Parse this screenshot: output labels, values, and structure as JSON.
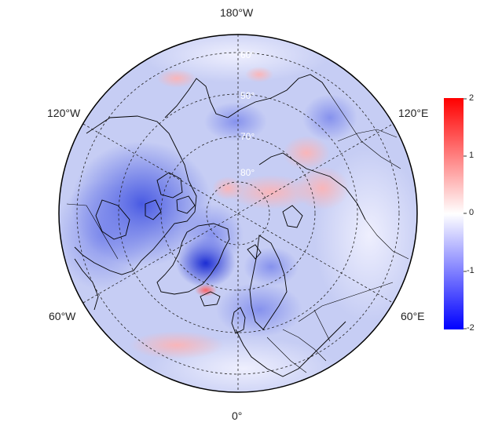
{
  "map": {
    "projection": "north-polar-stereographic",
    "lon_labels": [
      {
        "id": "top",
        "text": "180°W"
      },
      {
        "id": "upper-left",
        "text": "120°W"
      },
      {
        "id": "upper-right",
        "text": "120°E"
      },
      {
        "id": "lower-left",
        "text": "60°W"
      },
      {
        "id": "lower-right",
        "text": "60°E"
      },
      {
        "id": "bottom",
        "text": "0°"
      }
    ],
    "lat_labels": [
      "60°",
      "50°",
      "70°",
      "80°"
    ]
  },
  "colorbar": {
    "min": -2,
    "max": 2,
    "ticks": [
      "2",
      "1",
      "0",
      "-1",
      "-2"
    ],
    "colors": {
      "max": "#ff0000",
      "mid": "#ffffff",
      "min": "#0000ff"
    }
  },
  "colors": {
    "outline": "#000000",
    "grid": "#222222",
    "base": "#c8cff5"
  }
}
